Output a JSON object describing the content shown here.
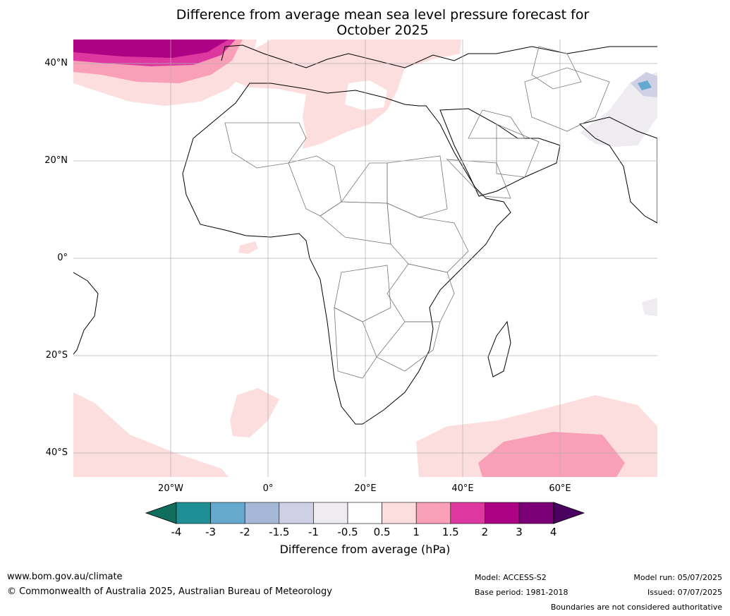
{
  "title": {
    "line1": "Difference from average mean sea level pressure forecast for",
    "line2": "October 2025"
  },
  "map": {
    "lat_labels": [
      "40°N",
      "20°N",
      "0°",
      "20°S",
      "40°S"
    ],
    "lon_labels": [
      "20°W",
      "0°",
      "20°E",
      "40°E",
      "60°E"
    ],
    "extent": {
      "lon": [
        -40,
        80
      ],
      "lat": [
        -45,
        45
      ]
    }
  },
  "colorbar": {
    "ticks": [
      "-4",
      "-3",
      "-2",
      "-1.5",
      "-1",
      "-0.5",
      "0.5",
      "1",
      "1.5",
      "2",
      "3",
      "4"
    ],
    "colors": {
      "below": "#0f6e5c",
      "bins": [
        "#1f8f96",
        "#66a9cf",
        "#a6b8d8",
        "#cfd0e6",
        "#efecf1",
        "#ffffff",
        "#fddede",
        "#f99fb8",
        "#dd38a0",
        "#ac0384",
        "#7b0077"
      ],
      "above": "#4a0060"
    },
    "label": "Difference from average (hPa)"
  },
  "footer": {
    "url": "www.bom.gov.au/climate",
    "copyright": "© Commonwealth of Australia 2025, Australian Bureau of Meteorology",
    "model": "Model: ACCESS-S2",
    "base_period": "Base period: 1981-2018",
    "model_run": "Model run: 05/07/2025",
    "issued": "Issued: 07/07/2025",
    "boundaries": "Boundaries are not considered authoritative"
  }
}
